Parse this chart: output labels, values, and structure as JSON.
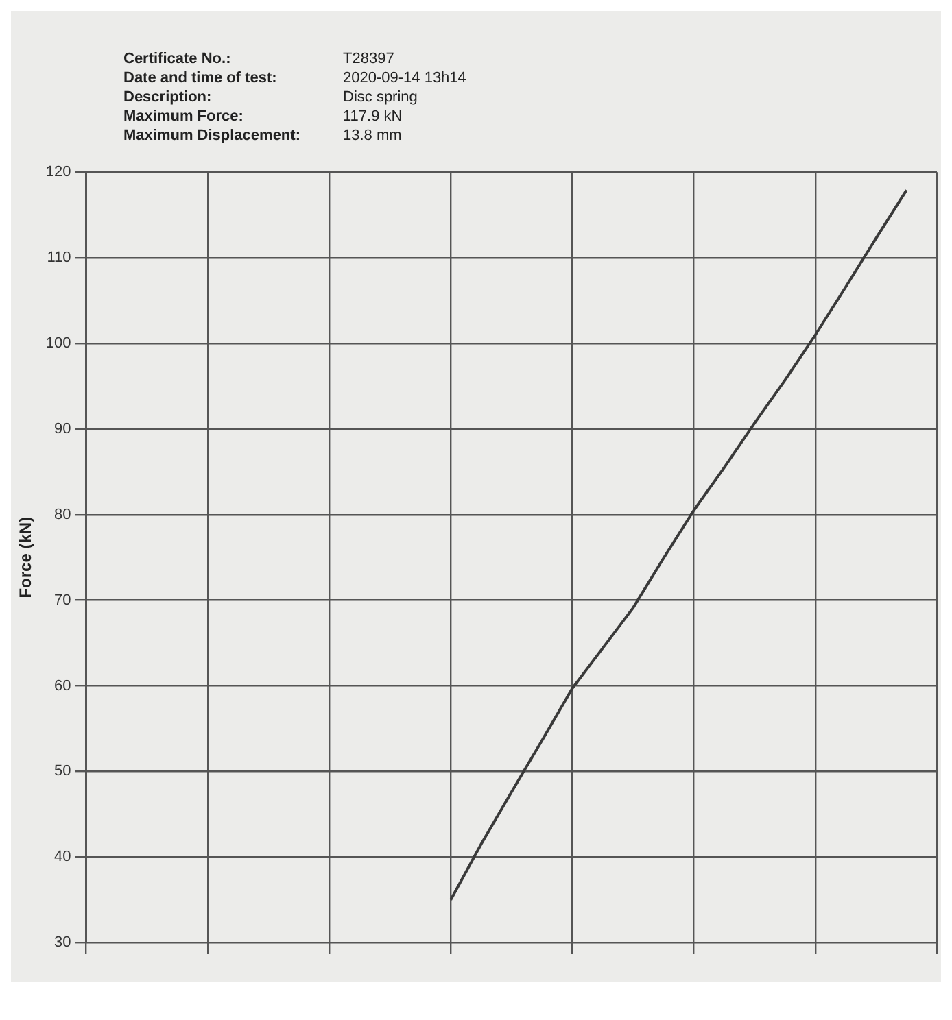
{
  "chart_data": {
    "type": "line",
    "ylabel": "Force (kN)",
    "annotations": [
      "Certificate No.:",
      "T28397",
      "Date and time of test:",
      "2020-09-14  13h14",
      "Description:",
      "Disc spring",
      "Maximum Force:",
      "117.9 kN",
      "Maximum Displacement:",
      "13.8 mm"
    ],
    "categories": [
      null,
      null,
      null,
      null,
      null,
      null,
      null,
      null,
      null,
      null,
      null,
      null,
      null,
      null,
      null,
      null,
      null,
      null,
      null,
      null,
      null,
      null,
      null,
      null,
      null,
      null,
      null,
      null,
      null
    ],
    "series": [
      {
        "color": "#3a3a3a",
        "values": [
          null,
          null,
          null,
          null,
          null,
          null,
          null,
          null,
          null,
          null,
          null,
          null,
          35,
          41.5,
          47.6,
          53.6,
          59.7,
          64.4,
          69.1,
          74.9,
          80.5,
          85.5,
          90.7,
          95.7,
          101,
          106.6,
          112.3,
          117.9,
          null
        ]
      }
    ],
    "ylim": [
      30,
      120
    ],
    "yticks": [
      30,
      40,
      50,
      60,
      70,
      80,
      90,
      100,
      110,
      120
    ],
    "grid": true,
    "legend": false,
    "marker": "none",
    "line_style": "solid"
  }
}
